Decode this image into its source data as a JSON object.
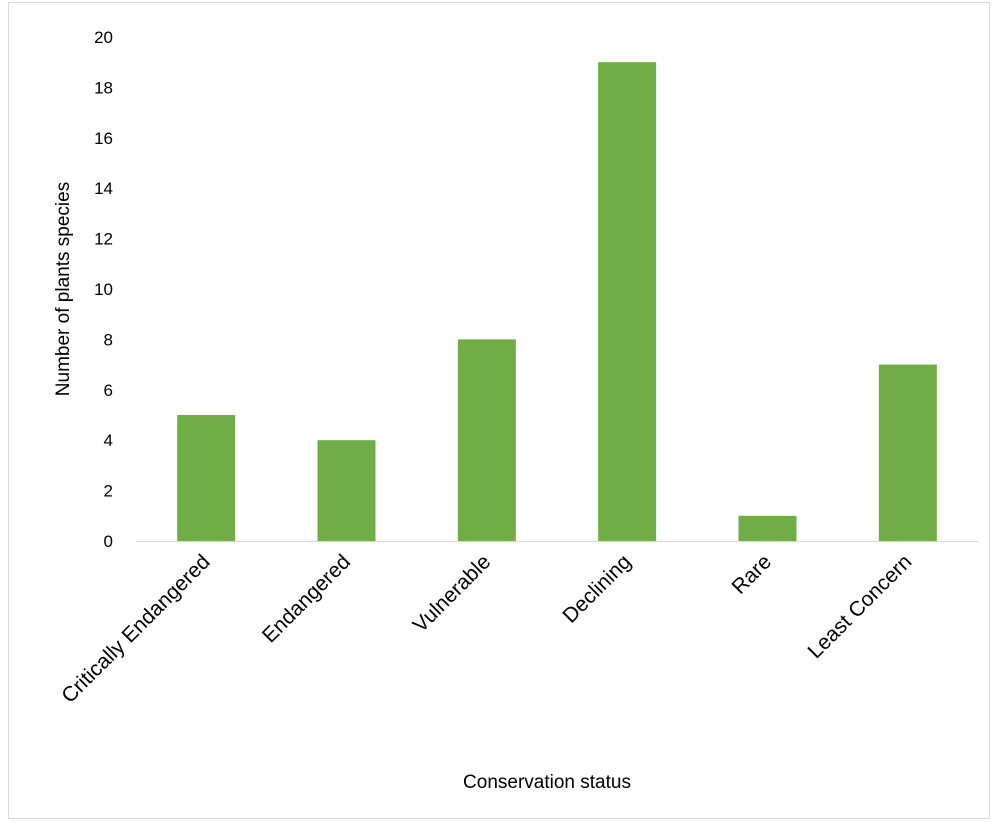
{
  "chart_data": {
    "type": "bar",
    "title": "",
    "xlabel": "Conservation status",
    "ylabel": "Number of plants species",
    "categories": [
      "Critically Endangered",
      "Endangered",
      "Vulnerable",
      "Declining",
      "Rare",
      "Least Concern"
    ],
    "values": [
      5,
      4,
      8,
      19,
      1,
      7
    ],
    "ylim": [
      0,
      20
    ],
    "yticks": [
      0,
      2,
      4,
      6,
      8,
      10,
      12,
      14,
      16,
      18,
      20
    ],
    "grid": false,
    "legend": "none",
    "bar_color": "#70ad47",
    "axis_color": "#d9d9d9"
  }
}
